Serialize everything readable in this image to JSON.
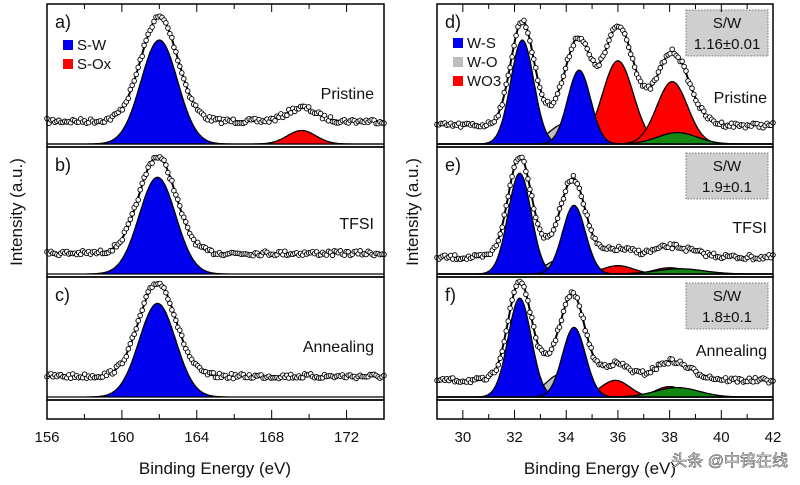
{
  "chart_data": [
    {
      "type": "area",
      "xlabel": "Binding Energy (eV)",
      "ylabel": "Intensity (a.u.)",
      "xlim": [
        156,
        174
      ],
      "xticks": [
        156,
        160,
        164,
        168,
        172
      ],
      "legend": [
        {
          "name": "S-W",
          "color": "#0000ee"
        },
        {
          "name": "S-Ox",
          "color": "#ff0000"
        }
      ],
      "legend_placement": "top-left",
      "panels": [
        {
          "label": "a)",
          "condition": "Pristine",
          "data_offset": 0.22,
          "components": [
            {
              "name": "S-W",
              "color": "#0000ee",
              "center": 162.0,
              "fwhm": 2.3,
              "height": 1.0
            },
            {
              "name": "S-Ox",
              "color": "#ff0000",
              "center": 169.6,
              "fwhm": 1.8,
              "height": 0.13
            }
          ]
        },
        {
          "label": "b)",
          "condition": "TFSI",
          "data_offset": 0.2,
          "components": [
            {
              "name": "S-W",
              "color": "#0000ee",
              "center": 161.9,
              "fwhm": 2.3,
              "height": 0.93
            }
          ]
        },
        {
          "label": "c)",
          "condition": "Annealing",
          "data_offset": 0.2,
          "components": [
            {
              "name": "S-W",
              "color": "#0000ee",
              "center": 161.9,
              "fwhm": 2.3,
              "height": 0.9
            }
          ]
        }
      ]
    },
    {
      "type": "area",
      "xlabel": "Binding Energy (eV)",
      "ylabel": "Intensity (a.u.)",
      "xlim": [
        29,
        42
      ],
      "xticks": [
        30,
        32,
        34,
        36,
        38,
        40,
        42
      ],
      "legend": [
        {
          "name": "W-S",
          "color": "#0000ee"
        },
        {
          "name": "W-O",
          "color": "#bdbdbd"
        },
        {
          "name": "WO3",
          "color": "#ff0000"
        }
      ],
      "legend_placement": "top-left",
      "panels": [
        {
          "label": "d)",
          "condition": "Pristine",
          "ratio_title": "S/W",
          "ratio": "1.16±0.01",
          "data_offset": 0.18,
          "components": [
            {
              "name": "W-O",
              "color": "#bdbdbd",
              "center": 33.9,
              "fwhm": 1.3,
              "height": 0.19
            },
            {
              "name": "W-O",
              "color": "#bdbdbd",
              "center": 36.1,
              "fwhm": 1.3,
              "height": 0.15
            },
            {
              "name": "WO3",
              "color": "#ff0000",
              "center": 36.0,
              "fwhm": 1.4,
              "height": 0.8
            },
            {
              "name": "WO3",
              "color": "#ff0000",
              "center": 38.1,
              "fwhm": 1.4,
              "height": 0.6
            },
            {
              "name": "",
              "color": "#118811",
              "center": 38.3,
              "fwhm": 1.8,
              "height": 0.11
            },
            {
              "name": "W-S",
              "color": "#0000ee",
              "center": 32.3,
              "fwhm": 1.05,
              "height": 1.0
            },
            {
              "name": "W-S",
              "color": "#0000ee",
              "center": 34.5,
              "fwhm": 1.05,
              "height": 0.71
            }
          ]
        },
        {
          "label": "e)",
          "condition": "TFSI",
          "ratio_title": "S/W",
          "ratio": "1.9±0.1",
          "data_offset": 0.16,
          "components": [
            {
              "name": "W-O",
              "color": "#bdbdbd",
              "center": 33.8,
              "fwhm": 1.4,
              "height": 0.14
            },
            {
              "name": "WO3",
              "color": "#ff0000",
              "center": 36.0,
              "fwhm": 1.4,
              "height": 0.08
            },
            {
              "name": "WO3",
              "color": "#ff0000",
              "center": 38.0,
              "fwhm": 1.4,
              "height": 0.06
            },
            {
              "name": "",
              "color": "#118811",
              "center": 38.4,
              "fwhm": 2.2,
              "height": 0.05
            },
            {
              "name": "W-S",
              "color": "#0000ee",
              "center": 32.2,
              "fwhm": 1.05,
              "height": 0.97
            },
            {
              "name": "W-S",
              "color": "#0000ee",
              "center": 34.3,
              "fwhm": 1.05,
              "height": 0.66
            }
          ]
        },
        {
          "label": "f)",
          "condition": "Annealing",
          "ratio_title": "S/W",
          "ratio": "1.8±0.1",
          "data_offset": 0.16,
          "components": [
            {
              "name": "W-O",
              "color": "#bdbdbd",
              "center": 33.8,
              "fwhm": 1.4,
              "height": 0.22
            },
            {
              "name": "WO3",
              "color": "#ff0000",
              "center": 35.9,
              "fwhm": 1.3,
              "height": 0.16
            },
            {
              "name": "WO3",
              "color": "#ff0000",
              "center": 38.0,
              "fwhm": 1.3,
              "height": 0.1
            },
            {
              "name": "",
              "color": "#118811",
              "center": 38.3,
              "fwhm": 2.0,
              "height": 0.09
            },
            {
              "name": "W-S",
              "color": "#0000ee",
              "center": 32.2,
              "fwhm": 1.05,
              "height": 0.95
            },
            {
              "name": "W-S",
              "color": "#0000ee",
              "center": 34.3,
              "fwhm": 1.05,
              "height": 0.67
            }
          ]
        }
      ]
    }
  ],
  "watermark": "头条 @中钨在线"
}
